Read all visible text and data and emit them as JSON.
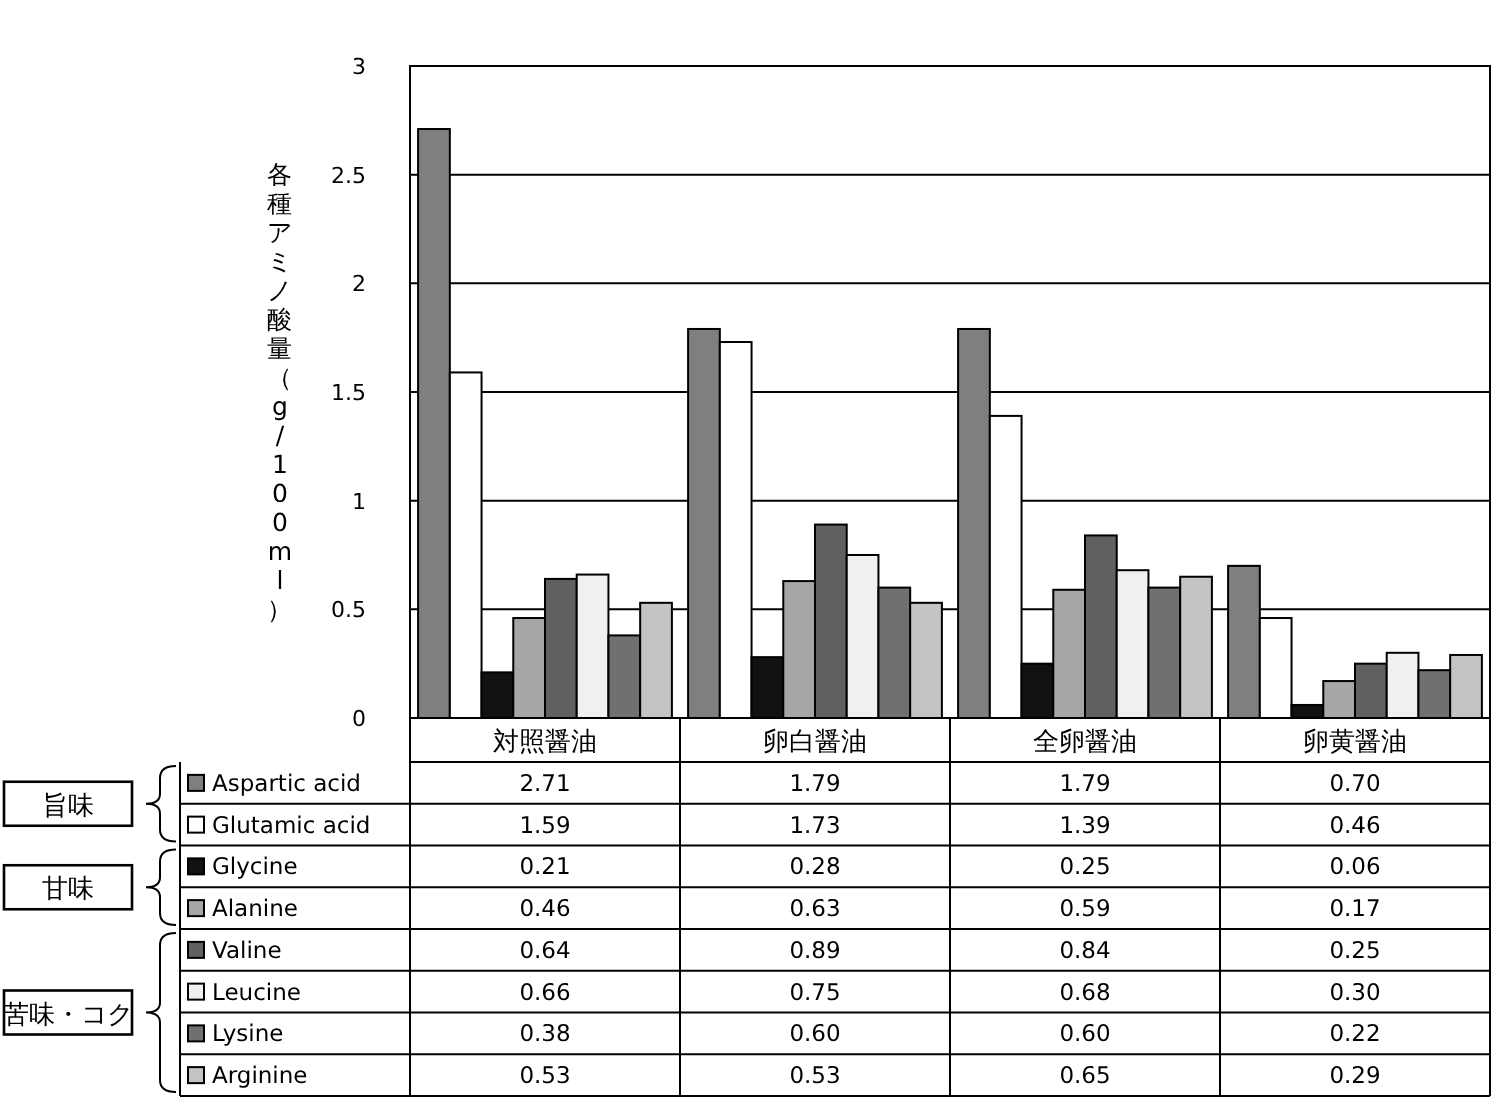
{
  "chart_data": {
    "type": "bar",
    "ylabel": "各種アミノ酸量（g/100ml）",
    "categories": [
      "対照醤油",
      "卵白醤油",
      "全卵醤油",
      "卵黄醤油"
    ],
    "ylim": [
      0,
      3
    ],
    "yticks": [
      0,
      0.5,
      1,
      1.5,
      2,
      2.5,
      3
    ],
    "grid": "y",
    "legend": "bottom left",
    "series": [
      {
        "name": "Aspartic acid",
        "color": "#7f7f7f",
        "values": [
          2.71,
          1.79,
          1.79,
          0.7
        ],
        "value_labels": [
          "2.71",
          "1.79",
          "1.79",
          "0.70"
        ]
      },
      {
        "name": "Glutamic acid",
        "color": "#ffffff",
        "values": [
          1.59,
          1.73,
          1.39,
          0.46
        ],
        "value_labels": [
          "1.59",
          "1.73",
          "1.39",
          "0.46"
        ]
      },
      {
        "name": "Glycine",
        "color": "#111111",
        "values": [
          0.21,
          0.28,
          0.25,
          0.06
        ],
        "value_labels": [
          "0.21",
          "0.28",
          "0.25",
          "0.06"
        ]
      },
      {
        "name": "Alanine",
        "color": "#a6a6a6",
        "values": [
          0.46,
          0.63,
          0.59,
          0.17
        ],
        "value_labels": [
          "0.46",
          "0.63",
          "0.59",
          "0.17"
        ]
      },
      {
        "name": "Valine",
        "color": "#606060",
        "values": [
          0.64,
          0.89,
          0.84,
          0.25
        ],
        "value_labels": [
          "0.64",
          "0.89",
          "0.84",
          "0.25"
        ]
      },
      {
        "name": "Leucine",
        "color": "#f0f0f0",
        "values": [
          0.66,
          0.75,
          0.68,
          0.3
        ],
        "value_labels": [
          "0.66",
          "0.75",
          "0.68",
          "0.30"
        ]
      },
      {
        "name": "Lysine",
        "color": "#707070",
        "values": [
          0.38,
          0.6,
          0.6,
          0.22
        ],
        "value_labels": [
          "0.38",
          "0.60",
          "0.60",
          "0.22"
        ]
      },
      {
        "name": "Arginine",
        "color": "#c4c4c4",
        "values": [
          0.53,
          0.53,
          0.65,
          0.29
        ],
        "value_labels": [
          "0.53",
          "0.53",
          "0.65",
          "0.29"
        ]
      }
    ],
    "annotations": [
      "旨味",
      "甘味",
      "苦味・コク"
    ]
  }
}
